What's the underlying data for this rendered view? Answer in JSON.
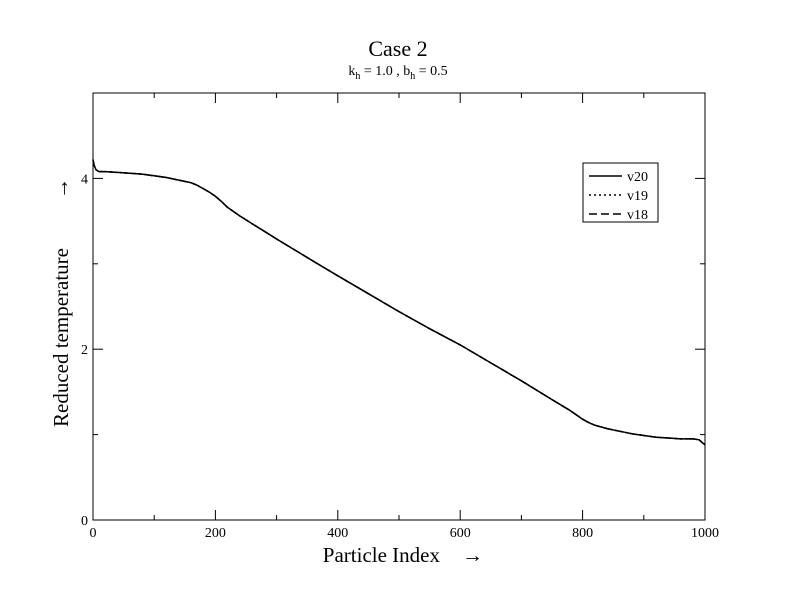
{
  "chart_data": {
    "type": "line",
    "title": "Case 2",
    "subtitle": {
      "k_base": "k",
      "k_sub": "h",
      "k_rest": " = 1.0 , ",
      "b_base": "b",
      "b_sub": "h",
      "b_rest": " = 0.5"
    },
    "xlabel": "Particle Index",
    "ylabel": "Reduced temperature",
    "arrow": "→",
    "xlim": [
      0,
      1000
    ],
    "ylim": [
      0,
      5
    ],
    "xticks": [
      0,
      200,
      400,
      600,
      800,
      1000
    ],
    "yticks": [
      0,
      2,
      4
    ],
    "xtick_labels": [
      "0",
      "200",
      "400",
      "600",
      "800",
      "1000"
    ],
    "ytick_labels": [
      "0",
      "2",
      "4"
    ],
    "legend_position": "top-right",
    "series": [
      {
        "name": "v20",
        "dash": "solid",
        "x": [
          0,
          2,
          5,
          10,
          20,
          40,
          60,
          80,
          100,
          120,
          140,
          160,
          170,
          180,
          190,
          200,
          210,
          220,
          240,
          260,
          280,
          300,
          330,
          360,
          400,
          450,
          500,
          550,
          600,
          650,
          700,
          750,
          780,
          800,
          810,
          820,
          840,
          860,
          880,
          900,
          920,
          940,
          960,
          980,
          990,
          995,
          1000
        ],
        "y": [
          4.22,
          4.15,
          4.1,
          4.08,
          4.08,
          4.07,
          4.06,
          4.05,
          4.03,
          4.01,
          3.98,
          3.95,
          3.92,
          3.88,
          3.84,
          3.79,
          3.73,
          3.66,
          3.56,
          3.47,
          3.38,
          3.29,
          3.16,
          3.03,
          2.86,
          2.65,
          2.44,
          2.24,
          2.05,
          1.84,
          1.63,
          1.41,
          1.28,
          1.18,
          1.14,
          1.11,
          1.07,
          1.04,
          1.01,
          0.99,
          0.97,
          0.96,
          0.95,
          0.95,
          0.94,
          0.91,
          0.88
        ]
      },
      {
        "name": "v19",
        "dash": "dotted",
        "x": [
          0,
          2,
          5,
          10,
          20,
          40,
          60,
          80,
          100,
          120,
          140,
          160,
          170,
          180,
          190,
          200,
          210,
          220,
          240,
          260,
          280,
          300,
          330,
          360,
          400,
          450,
          500,
          550,
          600,
          650,
          700,
          750,
          780,
          800,
          810,
          820,
          840,
          860,
          880,
          900,
          920,
          940,
          960,
          980,
          990,
          995,
          1000
        ],
        "y": [
          4.22,
          4.15,
          4.1,
          4.08,
          4.08,
          4.07,
          4.06,
          4.05,
          4.03,
          4.01,
          3.98,
          3.95,
          3.92,
          3.88,
          3.84,
          3.79,
          3.73,
          3.66,
          3.56,
          3.47,
          3.38,
          3.29,
          3.16,
          3.03,
          2.86,
          2.65,
          2.44,
          2.24,
          2.05,
          1.84,
          1.63,
          1.41,
          1.28,
          1.18,
          1.14,
          1.11,
          1.07,
          1.04,
          1.01,
          0.99,
          0.97,
          0.96,
          0.95,
          0.95,
          0.94,
          0.91,
          0.88
        ]
      },
      {
        "name": "v18",
        "dash": "dashed",
        "x": [
          0,
          2,
          5,
          10,
          20,
          40,
          60,
          80,
          100,
          120,
          140,
          160,
          170,
          180,
          190,
          200,
          210,
          220,
          240,
          260,
          280,
          300,
          330,
          360,
          400,
          450,
          500,
          550,
          600,
          650,
          700,
          750,
          780,
          800,
          810,
          820,
          840,
          860,
          880,
          900,
          920,
          940,
          960,
          980,
          990,
          995,
          1000
        ],
        "y": [
          4.22,
          4.15,
          4.1,
          4.08,
          4.08,
          4.07,
          4.06,
          4.05,
          4.03,
          4.01,
          3.98,
          3.95,
          3.92,
          3.88,
          3.84,
          3.79,
          3.73,
          3.66,
          3.56,
          3.47,
          3.38,
          3.29,
          3.16,
          3.03,
          2.86,
          2.65,
          2.44,
          2.24,
          2.05,
          1.84,
          1.63,
          1.41,
          1.28,
          1.18,
          1.14,
          1.11,
          1.07,
          1.04,
          1.01,
          0.99,
          0.97,
          0.96,
          0.95,
          0.95,
          0.94,
          0.91,
          0.88
        ]
      }
    ]
  }
}
